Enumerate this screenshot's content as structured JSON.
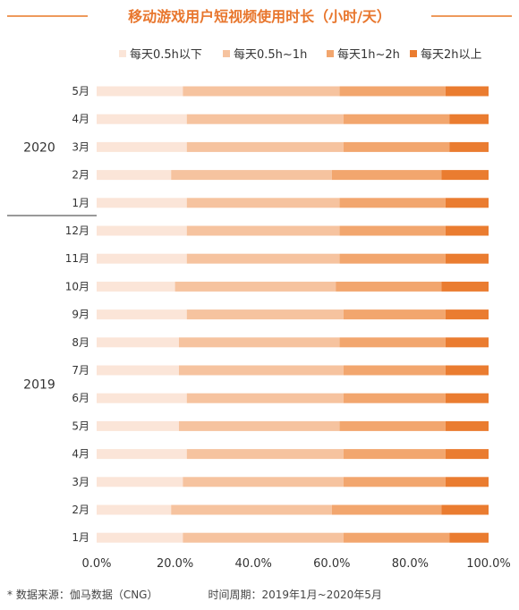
{
  "chart_data": {
    "type": "bar",
    "orientation": "horizontal",
    "stacked": true,
    "title": "移动游戏用户短视频使用时长（小时/天）",
    "legend_position": "top",
    "categories": [
      "5月",
      "4月",
      "3月",
      "2月",
      "1月",
      "12月",
      "11月",
      "10月",
      "9月",
      "8月",
      "7月",
      "6月",
      "5月",
      "4月",
      "3月",
      "2月",
      "1月"
    ],
    "groups": [
      {
        "label": "2020",
        "categories": [
          "5月",
          "4月",
          "3月",
          "2月",
          "1月"
        ]
      },
      {
        "label": "2019",
        "categories": [
          "12月",
          "11月",
          "10月",
          "9月",
          "8月",
          "7月",
          "6月",
          "5月",
          "4月",
          "3月",
          "2月",
          "1月"
        ]
      }
    ],
    "series": [
      {
        "name": "每天0.5h以下",
        "color": "#fbe5d8",
        "values": [
          22,
          23,
          23,
          19,
          23,
          23,
          23,
          20,
          23,
          21,
          21,
          23,
          21,
          23,
          22,
          19,
          22
        ]
      },
      {
        "name": "每天0.5h~1h",
        "color": "#f6c39f",
        "values": [
          40,
          40,
          40,
          41,
          39,
          39,
          39,
          41,
          40,
          41,
          42,
          40,
          41,
          40,
          41,
          41,
          41
        ]
      },
      {
        "name": "每天1h~2h",
        "color": "#f2a66e",
        "values": [
          27,
          27,
          27,
          28,
          27,
          27,
          27,
          27,
          26,
          27,
          26,
          26,
          27,
          26,
          26,
          28,
          27
        ]
      },
      {
        "name": "每天2h以上",
        "color": "#ea7c30",
        "values": [
          11,
          10,
          10,
          12,
          11,
          11,
          11,
          12,
          11,
          11,
          11,
          11,
          11,
          11,
          11,
          12,
          10
        ]
      }
    ],
    "x_ticks": [
      "0.0%",
      "20.0%",
      "40.0%",
      "60.0%",
      "80.0%",
      "100.0%"
    ],
    "xlim": [
      0,
      100
    ],
    "xlabel": "",
    "ylabel": "",
    "grid": false
  },
  "colors": {
    "title": "#e8762d",
    "title_rule": "#ee9a5c",
    "axis": "#333333"
  },
  "footer": {
    "source": "* 数据来源：伽马数据（CNG）",
    "period": "时间周期：2019年1月~2020年5月"
  }
}
